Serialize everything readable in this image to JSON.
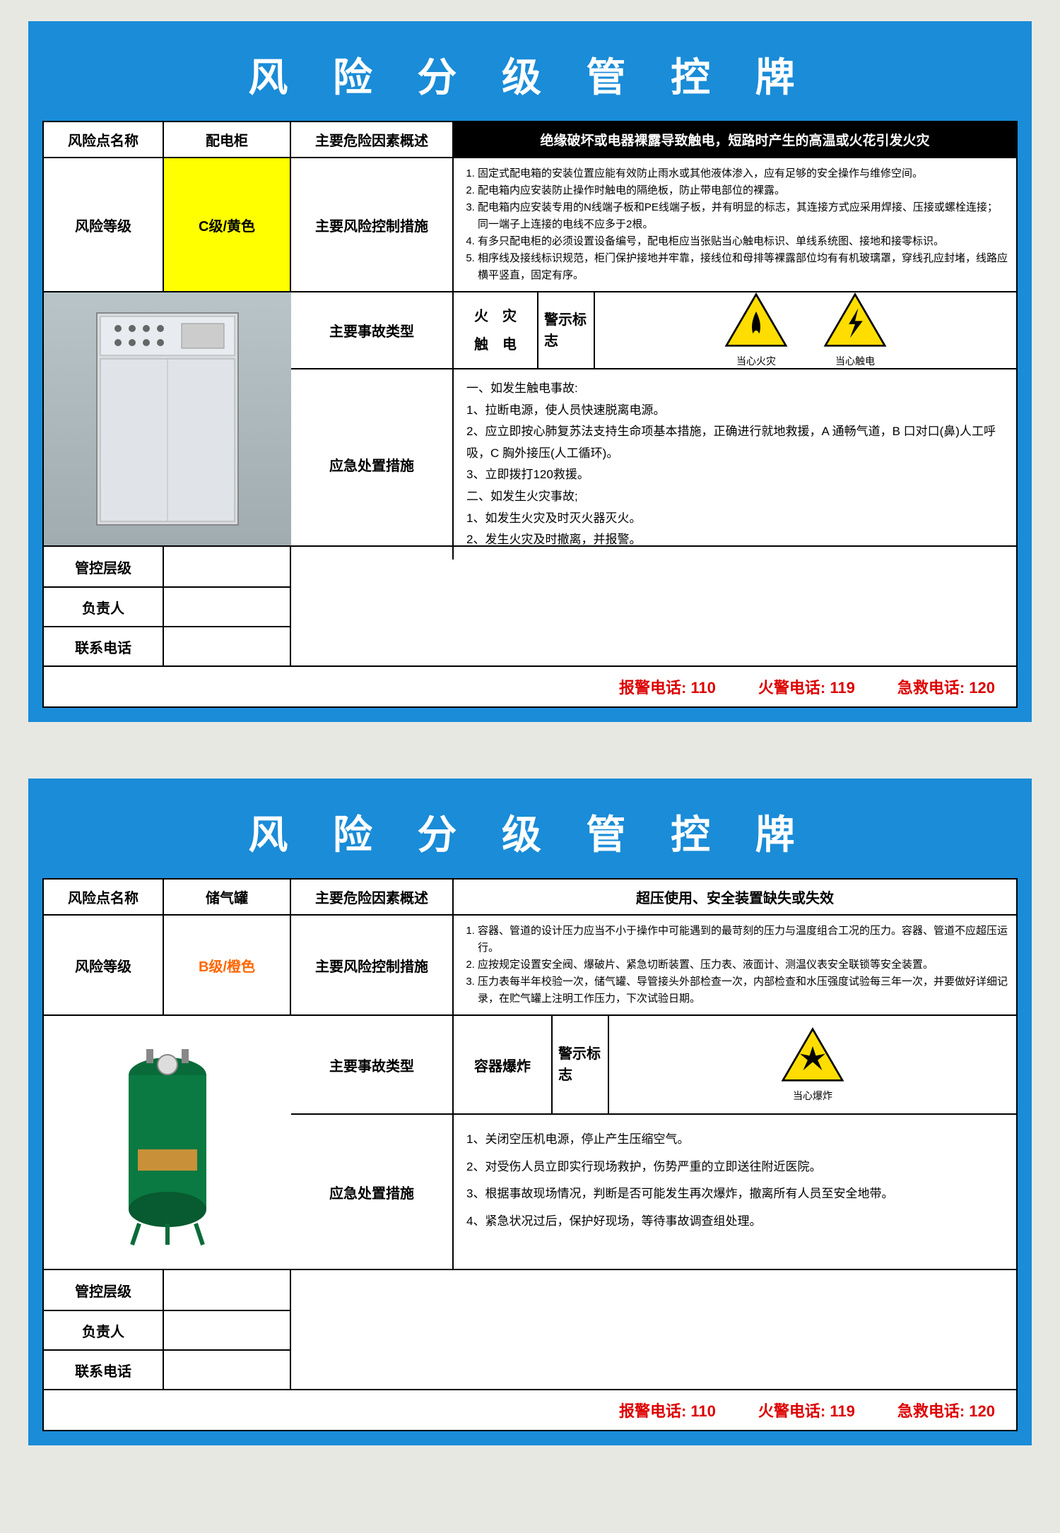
{
  "card1": {
    "title": "风 险 分 级 管 控 牌",
    "row1": {
      "l1": "风险点名称",
      "v1": "配电柜",
      "l2": "主要危险因素概述",
      "v2": "绝缘破坏或电器裸露导致触电，短路时产生的高温或火花引发火灾"
    },
    "row2": {
      "l1": "风险等级",
      "v1": "C级/黄色",
      "risk_bg": "#ffff00"
    },
    "control_label": "主要风险控制措施",
    "control_list": [
      "固定式配电箱的安装位置应能有效防止雨水或其他液体渗入，应有足够的安全操作与维修空间。",
      "配电箱内应安装防止操作时触电的隔绝板，防止带电部位的裸露。",
      "配电箱内应安装专用的N线端子板和PE线端子板，并有明显的标志，其连接方式应采用焊接、压接或螺栓连接；同一端子上连接的电线不应多于2根。",
      "有多只配电柜的必须设置设备编号，配电柜应当张贴当心触电标识、单线系统图、接地和接零标识。",
      "相序线及接线标识规范，柜门保护接地并牢靠，接线位和母排等裸露部位均有有机玻璃罩，穿线孔应封堵，线路应横平竖直，固定有序。"
    ],
    "accident_label": "主要事故类型",
    "accident_types": "火　灾\n触　电",
    "warn_label": "警示标志",
    "warn_items": [
      {
        "label": "当心火灾",
        "color": "#ffdd00"
      },
      {
        "label": "当心触电",
        "color": "#ffdd00"
      }
    ],
    "emergency_label": "应急处置措施",
    "emergency_text": "一、如发生触电事故:\n1、拉断电源，使人员快速脱离电源。\n2、应立即按心肺复苏法支持生命项基本措施，正确进行就地救援，A 通畅气道，B 口对口(鼻)人工呼吸，C 胸外接压(人工循环)。\n3、立即拨打120救援。\n二、如发生火灾事故;\n1、如发生火灾及时灭火器灭火。\n2、发生火灾及时撤离，并报警。",
    "bottom_labels": {
      "l1": "管控层级",
      "l2": "负责人",
      "l3": "联系电话"
    },
    "phones": {
      "alarm": "报警电话: 110",
      "fire": "火警电话: 119",
      "aid": "急救电话: 120"
    }
  },
  "card2": {
    "title": "风 险 分 级 管 控 牌",
    "row1": {
      "l1": "风险点名称",
      "v1": "储气罐",
      "l2": "主要危险因素概述",
      "v2": "超压使用、安全装置缺失或失效"
    },
    "row2": {
      "l1": "风险等级",
      "v1": "B级/橙色"
    },
    "control_label": "主要风险控制措施",
    "control_list": [
      "容器、管道的设计压力应当不小于操作中可能遇到的最苛刻的压力与温度组合工况的压力。容器、管道不应超压运行。",
      "应按规定设置安全阀、爆破片、紧急切断装置、压力表、液面计、测温仪表安全联锁等安全装置。",
      "压力表每半年校验一次，储气罐、导管接头外部检查一次，内部检查和水压强度试验每三年一次，并要做好详细记录，在贮气罐上注明工作压力，下次试验日期。"
    ],
    "accident_label": "主要事故类型",
    "accident_types": "容器爆炸",
    "warn_label": "警示标志",
    "warn_items": [
      {
        "label": "当心爆炸",
        "color": "#ffdd00"
      }
    ],
    "emergency_label": "应急处置措施",
    "emergency_list": [
      "关闭空压机电源，停止产生压缩空气。",
      "对受伤人员立即实行现场救护，伤势严重的立即送往附近医院。",
      "根据事故现场情况，判断是否可能发生再次爆炸，撤离所有人员至安全地带。",
      "紧急状况过后，保护好现场，等待事故调查组处理。"
    ],
    "bottom_labels": {
      "l1": "管控层级",
      "l2": "负责人",
      "l3": "联系电话"
    },
    "phones": {
      "alarm": "报警电话: 110",
      "fire": "火警电话: 119",
      "aid": "急救电话: 120"
    }
  }
}
